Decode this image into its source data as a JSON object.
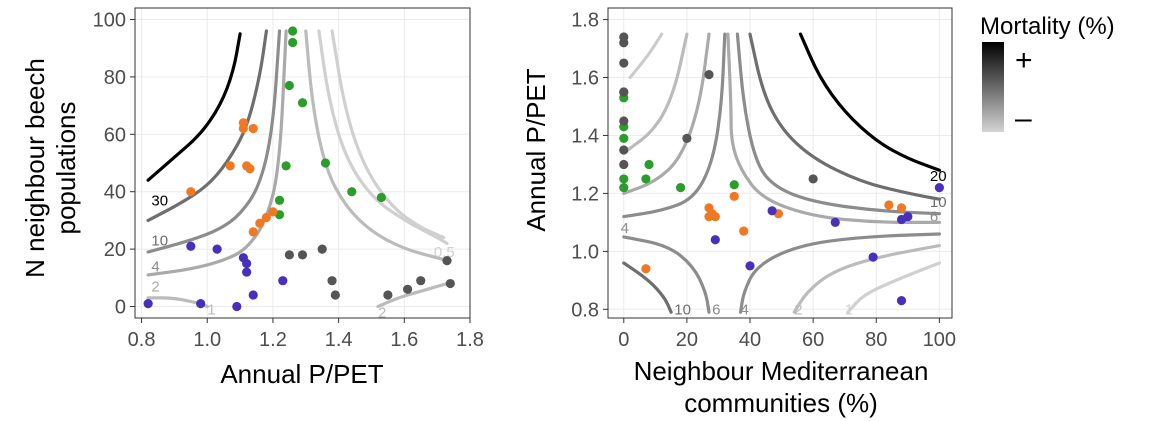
{
  "chart_data": [
    {
      "type": "scatter",
      "title": "",
      "xlabel": "Annual P/PET",
      "ylabel_lines": [
        "N neighbour beech",
        "populations"
      ],
      "xlim": [
        0.78,
        1.8
      ],
      "ylim": [
        -4,
        104
      ],
      "xticks": [
        "0.8",
        "1.0",
        "1.2",
        "1.4",
        "1.6",
        "1.8"
      ],
      "xtick_values": [
        0.8,
        1.0,
        1.2,
        1.4,
        1.6,
        1.8
      ],
      "yticks": [
        "0",
        "20",
        "40",
        "60",
        "80",
        "100"
      ],
      "ytick_values": [
        0,
        20,
        40,
        60,
        80,
        100
      ],
      "grid": true,
      "contours": [
        {
          "label": "30",
          "color": "#000000",
          "label_pos": [
            0.83,
            37
          ],
          "points": [
            [
              0.82,
              44
            ],
            [
              0.9,
              52
            ],
            [
              0.98,
              60
            ],
            [
              1.04,
              70
            ],
            [
              1.08,
              82
            ],
            [
              1.1,
              95
            ]
          ]
        },
        {
          "label": "10",
          "color": "#6e6e6e",
          "label_pos": [
            0.83,
            23
          ],
          "points": [
            [
              0.82,
              30
            ],
            [
              0.92,
              36
            ],
            [
              1.0,
              42
            ],
            [
              1.06,
              50
            ],
            [
              1.12,
              62
            ],
            [
              1.16,
              80
            ],
            [
              1.18,
              96
            ]
          ]
        },
        {
          "label": "4",
          "color": "#8c8c8c",
          "label_pos": [
            0.83,
            14
          ],
          "points": [
            [
              0.82,
              19
            ],
            [
              0.95,
              23
            ],
            [
              1.04,
              27
            ],
            [
              1.1,
              32
            ],
            [
              1.16,
              42
            ],
            [
              1.2,
              62
            ],
            [
              1.22,
              96
            ]
          ]
        },
        {
          "label": "2",
          "color": "#aaaaaa",
          "label_pos": [
            0.83,
            7
          ],
          "points": [
            [
              0.82,
              11
            ],
            [
              0.95,
              13
            ],
            [
              1.05,
              16
            ],
            [
              1.12,
              20
            ],
            [
              1.18,
              30
            ],
            [
              1.22,
              48
            ],
            [
              1.24,
              96
            ]
          ]
        },
        {
          "label": "1",
          "color": "#bbbbbb",
          "label_pos": [
            1.0,
            -1
          ],
          "points": [
            [
              0.82,
              3
            ],
            [
              0.9,
              3
            ],
            [
              0.98,
              1
            ],
            [
              1.0,
              0
            ]
          ]
        },
        {
          "label": "",
          "color": "#bbbbbb",
          "label_pos": null,
          "points": [
            [
              1.3,
              96
            ],
            [
              1.32,
              70
            ],
            [
              1.36,
              48
            ],
            [
              1.42,
              35
            ],
            [
              1.5,
              26
            ],
            [
              1.6,
              20
            ],
            [
              1.7,
              17
            ],
            [
              1.73,
              16
            ]
          ]
        },
        {
          "label": "",
          "color": "#d0d0d0",
          "label_pos": null,
          "points": [
            [
              1.34,
              96
            ],
            [
              1.37,
              72
            ],
            [
              1.42,
              52
            ],
            [
              1.5,
              38
            ],
            [
              1.6,
              30
            ],
            [
              1.7,
              24
            ],
            [
              1.73,
              22
            ]
          ]
        },
        {
          "label": "0.5",
          "color": "#d0d0d0",
          "label_pos": [
            1.69,
            19
          ],
          "points": [
            [
              1.38,
              96
            ],
            [
              1.42,
              68
            ],
            [
              1.48,
              48
            ],
            [
              1.56,
              35
            ],
            [
              1.64,
              28
            ],
            [
              1.72,
              24
            ]
          ]
        },
        {
          "label": "2",
          "color": "#bbbbbb",
          "label_pos": [
            1.52,
            -2
          ],
          "points": [
            [
              1.52,
              0
            ],
            [
              1.58,
              3
            ],
            [
              1.64,
              5
            ],
            [
              1.7,
              7
            ],
            [
              1.73,
              8
            ]
          ]
        }
      ],
      "series": [
        {
          "name": "",
          "color": "#2a9d2a",
          "points": [
            [
              1.26,
              96
            ],
            [
              1.26,
              92
            ],
            [
              1.25,
              77
            ],
            [
              1.29,
              71
            ],
            [
              1.36,
              50
            ],
            [
              1.24,
              49
            ],
            [
              1.44,
              40
            ],
            [
              1.53,
              38
            ],
            [
              1.22,
              37
            ],
            [
              1.22,
              32
            ]
          ]
        },
        {
          "name": "",
          "color": "#f07820",
          "points": [
            [
              1.11,
              64
            ],
            [
              1.11,
              62
            ],
            [
              1.14,
              62
            ],
            [
              1.12,
              49
            ],
            [
              1.13,
              48
            ],
            [
              1.07,
              49
            ],
            [
              0.95,
              40
            ],
            [
              1.18,
              31
            ],
            [
              1.16,
              29
            ],
            [
              1.14,
              26
            ],
            [
              1.2,
              33
            ]
          ]
        },
        {
          "name": "",
          "color": "#4a2fbd",
          "points": [
            [
              0.95,
              21
            ],
            [
              1.03,
              20
            ],
            [
              1.11,
              17
            ],
            [
              1.12,
              15
            ],
            [
              1.12,
              12
            ],
            [
              0.82,
              1
            ],
            [
              0.98,
              1
            ],
            [
              1.09,
              0
            ],
            [
              1.14,
              4
            ],
            [
              1.23,
              9
            ]
          ]
        },
        {
          "name": "",
          "color": "#555555",
          "points": [
            [
              1.25,
              18
            ],
            [
              1.29,
              18
            ],
            [
              1.35,
              20
            ],
            [
              1.38,
              9
            ],
            [
              1.39,
              4
            ],
            [
              1.55,
              4
            ],
            [
              1.61,
              6
            ],
            [
              1.65,
              9
            ],
            [
              1.73,
              16
            ],
            [
              1.74,
              8
            ]
          ]
        }
      ]
    },
    {
      "type": "scatter",
      "title": "",
      "xlabel_lines": [
        "Neighbour Mediterranean",
        "communities (%)"
      ],
      "ylabel": "Annual P/PET",
      "xlim": [
        -5,
        104
      ],
      "ylim": [
        0.77,
        1.84
      ],
      "xticks": [
        "0",
        "20",
        "40",
        "60",
        "80",
        "100"
      ],
      "xtick_values": [
        0,
        20,
        40,
        60,
        80,
        100
      ],
      "yticks": [
        "0.8",
        "1.0",
        "1.2",
        "1.4",
        "1.6",
        "1.8"
      ],
      "ytick_values": [
        0.8,
        1.0,
        1.2,
        1.4,
        1.6,
        1.8
      ],
      "grid": true,
      "contours": [
        {
          "label": "20",
          "color": "#000000",
          "label_pos": [
            97,
            1.26
          ],
          "points": [
            [
              56,
              1.75
            ],
            [
              62,
              1.6
            ],
            [
              70,
              1.48
            ],
            [
              80,
              1.38
            ],
            [
              90,
              1.32
            ],
            [
              100,
              1.28
            ]
          ]
        },
        {
          "label": "10",
          "color": "#6e6e6e",
          "label_pos": [
            97,
            1.17
          ],
          "points": [
            [
              40,
              1.75
            ],
            [
              44,
              1.55
            ],
            [
              50,
              1.42
            ],
            [
              60,
              1.32
            ],
            [
              75,
              1.24
            ],
            [
              90,
              1.2
            ],
            [
              100,
              1.18
            ]
          ]
        },
        {
          "label": "6",
          "color": "#8c8c8c",
          "label_pos": [
            97,
            1.12
          ],
          "points": [
            [
              36,
              1.75
            ],
            [
              38,
              1.5
            ],
            [
              42,
              1.3
            ],
            [
              48,
              1.22
            ],
            [
              60,
              1.17
            ],
            [
              80,
              1.14
            ],
            [
              100,
              1.13
            ]
          ]
        },
        {
          "label": "",
          "color": "#aaaaaa",
          "label_pos": null,
          "points": [
            [
              33,
              1.75
            ],
            [
              34,
              1.5
            ],
            [
              34,
              1.38
            ],
            [
              37,
              1.28
            ],
            [
              44,
              1.18
            ],
            [
              60,
              1.12
            ],
            [
              80,
              1.1
            ],
            [
              100,
              1.1
            ]
          ]
        },
        {
          "label": "4",
          "color": "#8c8c8c",
          "label_pos": [
            -1,
            1.08
          ],
          "points": [
            [
              0,
              1.12
            ],
            [
              12,
              1.14
            ],
            [
              22,
              1.18
            ],
            [
              28,
              1.3
            ],
            [
              31,
              1.5
            ],
            [
              32,
              1.75
            ]
          ]
        },
        {
          "label": "",
          "color": "#aaaaaa",
          "label_pos": null,
          "points": [
            [
              0,
              1.2
            ],
            [
              10,
              1.24
            ],
            [
              18,
              1.32
            ],
            [
              24,
              1.5
            ],
            [
              27,
              1.75
            ]
          ]
        },
        {
          "label": "",
          "color": "#bbbbbb",
          "label_pos": null,
          "points": [
            [
              0,
              1.34
            ],
            [
              10,
              1.42
            ],
            [
              16,
              1.55
            ],
            [
              20,
              1.75
            ]
          ]
        },
        {
          "label": "",
          "color": "#cccccc",
          "label_pos": null,
          "points": [
            [
              2,
              1.6
            ],
            [
              8,
              1.68
            ],
            [
              12,
              1.75
            ]
          ]
        },
        {
          "label": "10",
          "color": "#6e6e6e",
          "label_pos": [
            16,
            0.8
          ],
          "points": [
            [
              0,
              0.96
            ],
            [
              8,
              0.9
            ],
            [
              13,
              0.84
            ],
            [
              15,
              0.79
            ]
          ]
        },
        {
          "label": "6",
          "color": "#8c8c8c",
          "label_pos": [
            28,
            0.8
          ],
          "points": [
            [
              0,
              1.05
            ],
            [
              14,
              1.02
            ],
            [
              22,
              0.95
            ],
            [
              26,
              0.86
            ],
            [
              27,
              0.79
            ]
          ]
        },
        {
          "label": "4",
          "color": "#8c8c8c",
          "label_pos": [
            37,
            0.8
          ],
          "points": [
            [
              37,
              0.79
            ],
            [
              38,
              0.86
            ],
            [
              42,
              0.95
            ],
            [
              55,
              1.02
            ],
            [
              75,
              1.05
            ],
            [
              100,
              1.06
            ]
          ]
        },
        {
          "label": "2",
          "color": "#bbbbbb",
          "label_pos": [
            54,
            0.8
          ],
          "points": [
            [
              54,
              0.79
            ],
            [
              58,
              0.86
            ],
            [
              66,
              0.93
            ],
            [
              80,
              0.98
            ],
            [
              100,
              1.02
            ]
          ]
        },
        {
          "label": "1",
          "color": "#d0d0d0",
          "label_pos": [
            70,
            0.8
          ],
          "points": [
            [
              71,
              0.79
            ],
            [
              76,
              0.85
            ],
            [
              86,
              0.9
            ],
            [
              100,
              0.96
            ]
          ]
        }
      ],
      "series": [
        {
          "name": "",
          "color": "#2a9d2a",
          "points": [
            [
              0,
              1.55
            ],
            [
              0,
              1.53
            ],
            [
              0,
              1.43
            ],
            [
              0,
              1.39
            ],
            [
              0,
              1.25
            ],
            [
              0,
              1.22
            ],
            [
              8,
              1.3
            ],
            [
              7,
              1.25
            ],
            [
              18,
              1.22
            ],
            [
              35,
              1.23
            ]
          ]
        },
        {
          "name": "",
          "color": "#f07820",
          "points": [
            [
              7,
              0.94
            ],
            [
              27,
              1.15
            ],
            [
              27,
              1.12
            ],
            [
              28,
              1.13
            ],
            [
              29,
              1.12
            ],
            [
              35,
              1.19
            ],
            [
              38,
              1.07
            ],
            [
              49,
              1.13
            ],
            [
              84,
              1.16
            ],
            [
              88,
              1.15
            ]
          ]
        },
        {
          "name": "",
          "color": "#4a2fbd",
          "points": [
            [
              29,
              1.04
            ],
            [
              40,
              0.95
            ],
            [
              47,
              1.14
            ],
            [
              67,
              1.1
            ],
            [
              79,
              0.98
            ],
            [
              88,
              1.11
            ],
            [
              90,
              1.12
            ],
            [
              100,
              1.22
            ],
            [
              88,
              0.83
            ]
          ]
        },
        {
          "name": "",
          "color": "#555555",
          "points": [
            [
              0,
              1.74
            ],
            [
              0,
              1.72
            ],
            [
              0,
              1.65
            ],
            [
              0,
              1.55
            ],
            [
              0,
              1.45
            ],
            [
              0,
              1.35
            ],
            [
              0,
              1.3
            ],
            [
              20,
              1.39
            ],
            [
              27,
              1.61
            ],
            [
              60,
              1.25
            ]
          ]
        }
      ]
    }
  ],
  "legend": {
    "title": "Mortality (%)",
    "high_label": "+",
    "low_label": "–",
    "gradient_top": "#000000",
    "gradient_bottom": "#d4d4d4"
  }
}
